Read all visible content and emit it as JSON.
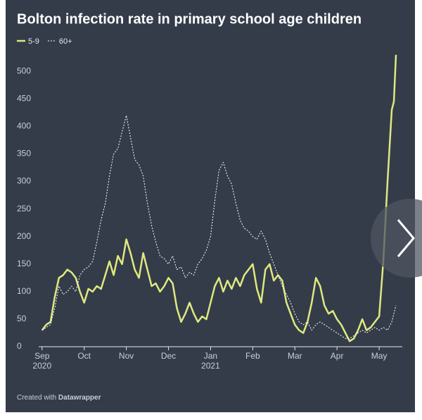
{
  "chart_data": {
    "type": "line",
    "title": "Bolton infection rate in primary school age children",
    "footer_prefix": "Created with",
    "footer_brand": "Datawrapper",
    "x": [
      0,
      0.1,
      0.2,
      0.3,
      0.4,
      0.5,
      0.6,
      0.7,
      0.8,
      0.9,
      1.0,
      1.1,
      1.2,
      1.3,
      1.4,
      1.5,
      1.6,
      1.7,
      1.8,
      1.9,
      2.0,
      2.1,
      2.2,
      2.3,
      2.4,
      2.5,
      2.6,
      2.7,
      2.8,
      2.9,
      3.0,
      3.1,
      3.2,
      3.3,
      3.4,
      3.5,
      3.6,
      3.7,
      3.8,
      3.9,
      4.0,
      4.1,
      4.2,
      4.3,
      4.4,
      4.5,
      4.6,
      4.7,
      4.8,
      4.9,
      5.0,
      5.1,
      5.2,
      5.3,
      5.4,
      5.5,
      5.6,
      5.7,
      5.8,
      5.9,
      6.0,
      6.1,
      6.2,
      6.3,
      6.4,
      6.5,
      6.6,
      6.7,
      6.8,
      6.9,
      7.0,
      7.1,
      7.2,
      7.3,
      7.4,
      7.5,
      7.6,
      7.7,
      7.8,
      7.9,
      8.0,
      8.1,
      8.2,
      8.3,
      8.35,
      8.4
    ],
    "series": [
      {
        "name": "5-9",
        "color": "#dfe97f",
        "dash": false,
        "values": [
          30,
          40,
          45,
          90,
          125,
          130,
          140,
          135,
          125,
          100,
          80,
          105,
          100,
          110,
          105,
          130,
          155,
          130,
          165,
          150,
          195,
          170,
          140,
          125,
          170,
          140,
          110,
          115,
          100,
          110,
          125,
          115,
          70,
          45,
          60,
          80,
          60,
          45,
          55,
          50,
          80,
          110,
          125,
          100,
          120,
          105,
          125,
          110,
          130,
          140,
          150,
          105,
          80,
          140,
          150,
          120,
          130,
          120,
          80,
          60,
          40,
          30,
          25,
          45,
          80,
          125,
          110,
          75,
          60,
          65,
          50,
          40,
          25,
          10,
          15,
          30,
          50,
          30,
          35,
          45,
          55,
          155,
          300,
          430,
          445,
          530
        ]
      },
      {
        "name": "60+",
        "color": "#ffffff",
        "dash": true,
        "values": [
          30,
          35,
          40,
          70,
          110,
          95,
          100,
          110,
          100,
          130,
          140,
          145,
          155,
          190,
          230,
          260,
          310,
          350,
          360,
          390,
          420,
          380,
          340,
          330,
          310,
          260,
          220,
          190,
          165,
          160,
          150,
          165,
          140,
          145,
          125,
          135,
          130,
          150,
          160,
          175,
          200,
          265,
          320,
          335,
          310,
          295,
          260,
          230,
          215,
          210,
          200,
          195,
          210,
          195,
          170,
          150,
          130,
          110,
          95,
          80,
          60,
          45,
          40,
          45,
          30,
          40,
          45,
          40,
          35,
          30,
          25,
          20,
          15,
          15,
          20,
          25,
          30,
          25,
          30,
          35,
          30,
          35,
          30,
          45,
          60,
          75
        ]
      }
    ],
    "xlim": [
      -0.08,
      8.55
    ],
    "xticks": [
      {
        "value": 0,
        "label": "Sep 2020"
      },
      {
        "value": 1,
        "label": "Oct"
      },
      {
        "value": 2,
        "label": "Nov"
      },
      {
        "value": 3,
        "label": "Dec"
      },
      {
        "value": 4,
        "label": "Jan 2021"
      },
      {
        "value": 5,
        "label": "Feb"
      },
      {
        "value": 6,
        "label": "Mar"
      },
      {
        "value": 7,
        "label": "Apr"
      },
      {
        "value": 8,
        "label": "May"
      }
    ],
    "ylim": [
      0,
      540
    ],
    "yticks": [
      0,
      50,
      100,
      150,
      200,
      250,
      300,
      350,
      400,
      450,
      500
    ],
    "grid": false,
    "legend": "top-left"
  }
}
